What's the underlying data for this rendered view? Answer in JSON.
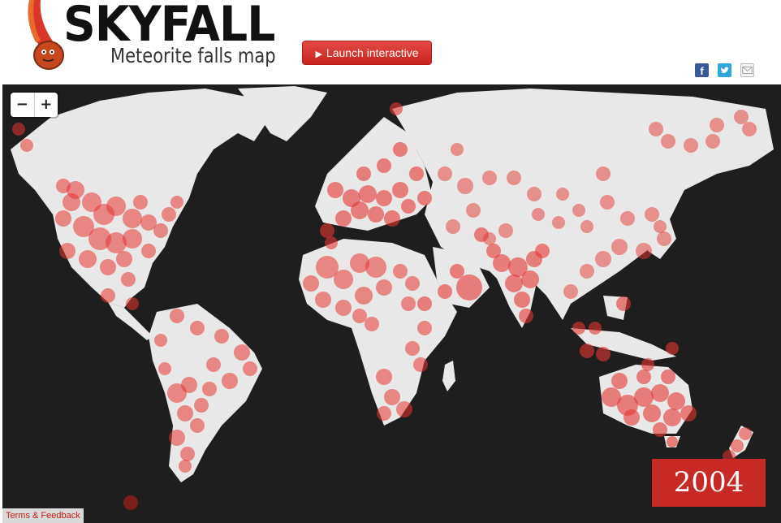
{
  "header": {
    "title": "SKYFALL",
    "subtitle": "Meteorite falls map",
    "launch_label": "Launch interactive",
    "share": {
      "facebook_glyph": "f"
    }
  },
  "map": {
    "zoom_out_label": "−",
    "zoom_in_label": "+",
    "year": "2004",
    "terms_label": "Terms & Feedback",
    "colors": {
      "ocean": "#1e1e1e",
      "land": "#e8e8e8",
      "marker": "#e53530",
      "accent": "#c72a24"
    }
  }
}
